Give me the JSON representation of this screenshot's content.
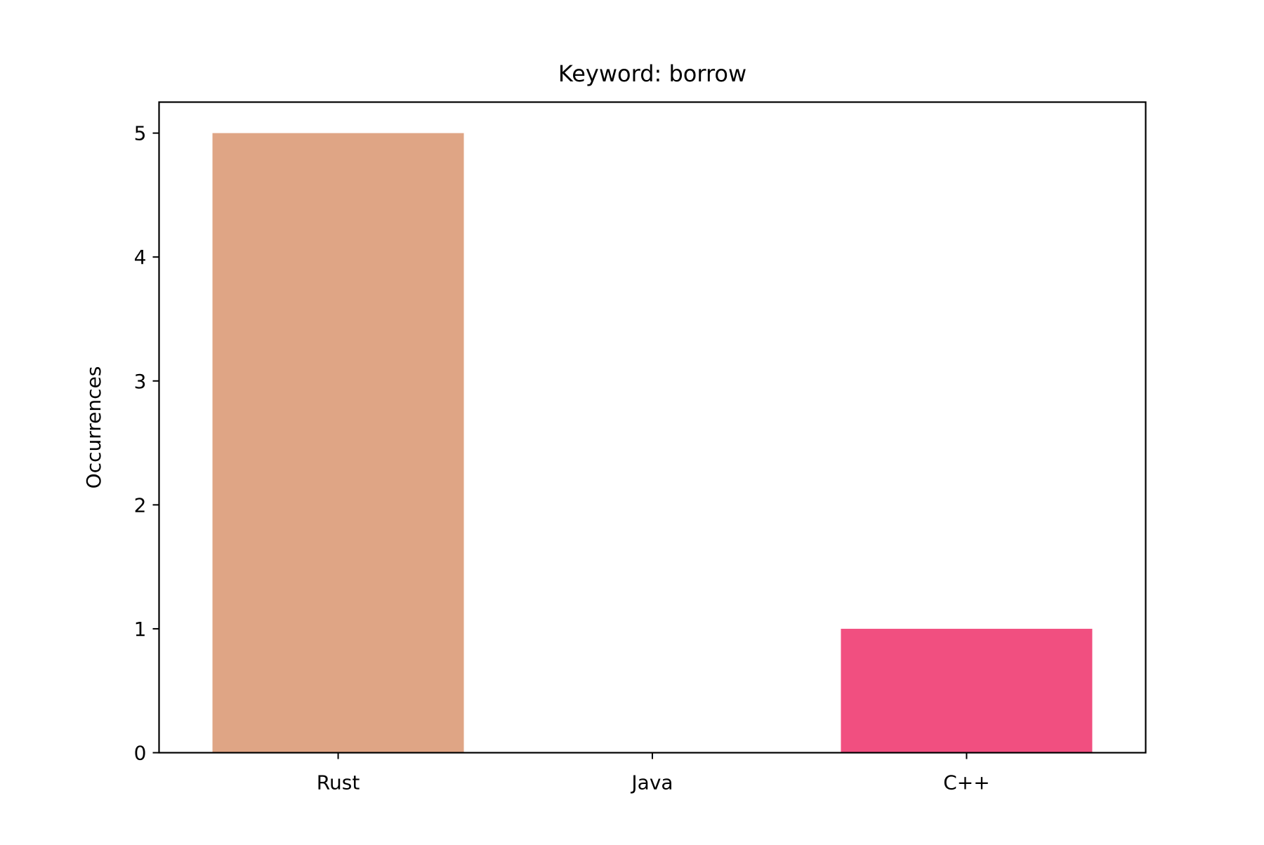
{
  "chart_data": {
    "type": "bar",
    "title": "Keyword: borrow",
    "xlabel": "",
    "ylabel": "Occurrences",
    "categories": [
      "Rust",
      "Java",
      "C++"
    ],
    "values": [
      5,
      0,
      1
    ],
    "colors": [
      "#dfa585",
      "#f14f80",
      "#f14f80"
    ],
    "ylim": [
      0,
      5.25
    ],
    "yticks": [
      0,
      1,
      2,
      3,
      4,
      5
    ],
    "grid": false,
    "legend": "none"
  }
}
